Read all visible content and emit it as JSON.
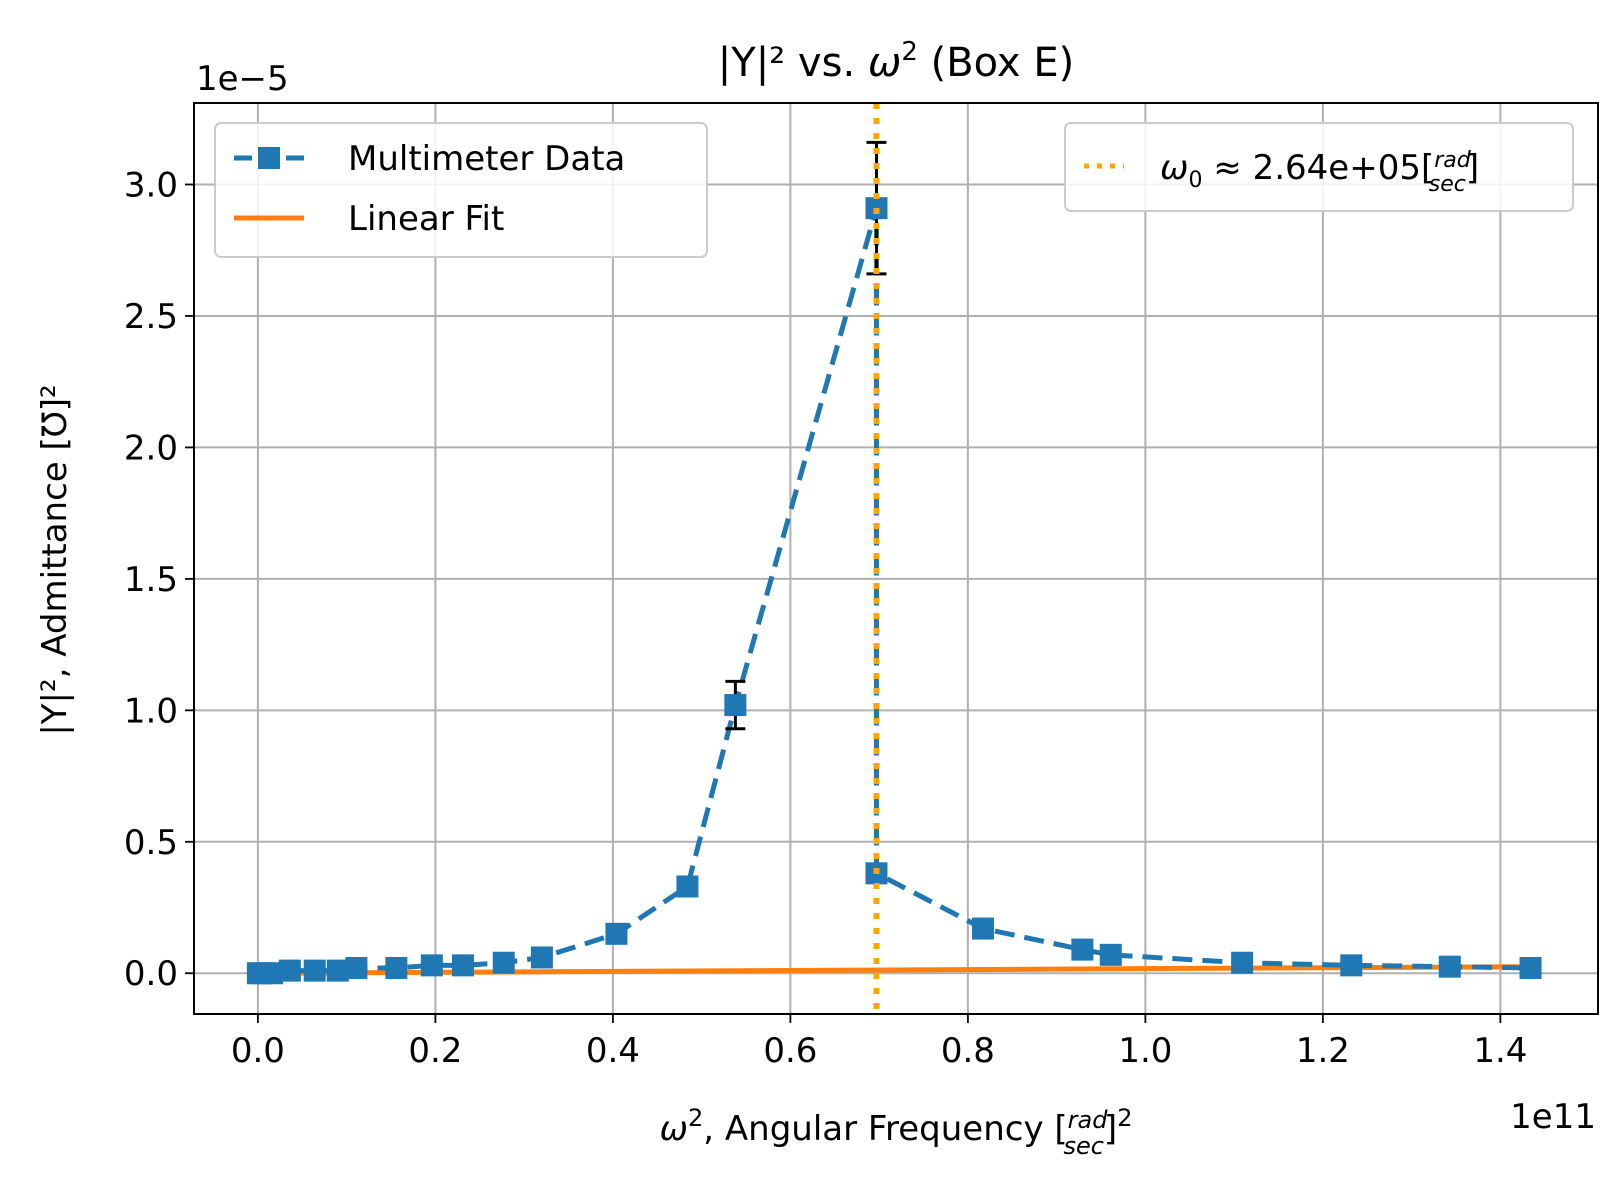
{
  "chart_data": {
    "type": "line",
    "title_main": "|Y|² vs. ",
    "title_omega": "ω",
    "title_sup": "2",
    "title_suffix": " (Box E)",
    "xlabel_omega": "ω",
    "xlabel_sup": "2",
    "xlabel_text": ", Angular Frequency [",
    "xlabel_frac_num": "rad",
    "xlabel_frac_den": "sec",
    "xlabel_end": "]",
    "xlabel_end_sup": "2",
    "ylabel_text": "|Y|², Admittance [Ʊ]²",
    "x_offset_label": "1e11",
    "y_offset_label": "1e−5",
    "x_scale": 100000000000.0,
    "y_scale": 1e-05,
    "xlim": [
      -0.072,
      1.51
    ],
    "ylim": [
      -0.155,
      3.31
    ],
    "x_ticks": [
      0.0,
      0.2,
      0.4,
      0.6,
      0.8,
      1.0,
      1.2,
      1.4
    ],
    "x_tick_labels": [
      "0.0",
      "0.2",
      "0.4",
      "0.6",
      "0.8",
      "1.0",
      "1.2",
      "1.4"
    ],
    "y_ticks": [
      0.0,
      0.5,
      1.0,
      1.5,
      2.0,
      2.5,
      3.0
    ],
    "y_tick_labels": [
      "0.0",
      "0.5",
      "1.0",
      "1.5",
      "2.0",
      "2.5",
      "3.0"
    ],
    "grid": true,
    "series": [
      {
        "name": "Multimeter Data",
        "style": "dashed-square-markers",
        "color": "#1f77b4",
        "x": [
          0.0,
          0.004,
          0.016,
          0.036,
          0.064,
          0.09,
          0.111,
          0.156,
          0.196,
          0.231,
          0.277,
          0.32,
          0.404,
          0.484,
          0.538,
          0.697,
          0.697,
          0.817,
          0.929,
          0.961,
          1.109,
          1.232,
          1.343,
          1.434
        ],
        "y": [
          0.0,
          0.0,
          0.0,
          0.01,
          0.01,
          0.01,
          0.02,
          0.02,
          0.03,
          0.03,
          0.04,
          0.06,
          0.15,
          0.33,
          1.02,
          2.91,
          0.38,
          0.17,
          0.09,
          0.07,
          0.04,
          0.03,
          0.025,
          0.02
        ],
        "yerr": [
          0.0,
          0.0,
          0.0,
          0.0,
          0.0,
          0.0,
          0.0,
          0.0,
          0.0,
          0.0,
          0.0,
          0.0,
          0.01,
          0.02,
          0.09,
          0.25,
          0.03,
          0.01,
          0.01,
          0.005,
          0.0,
          0.0,
          0.0,
          0.0
        ]
      },
      {
        "name": "Linear Fit",
        "style": "solid",
        "color": "#ff7f0e",
        "x": [
          0.0,
          1.434
        ],
        "y": [
          0.0,
          0.025
        ]
      }
    ],
    "vline": {
      "x": 0.697,
      "color": "#ffa500",
      "style": "dotted",
      "legend_omega": "ω",
      "legend_sub": "0",
      "legend_text": " ≈ 2.64e+05[",
      "legend_frac_num": "rad",
      "legend_frac_den": "sec",
      "legend_end": "]"
    },
    "legend_placement_main": "upper-left",
    "legend_placement_vline": "upper-right"
  }
}
